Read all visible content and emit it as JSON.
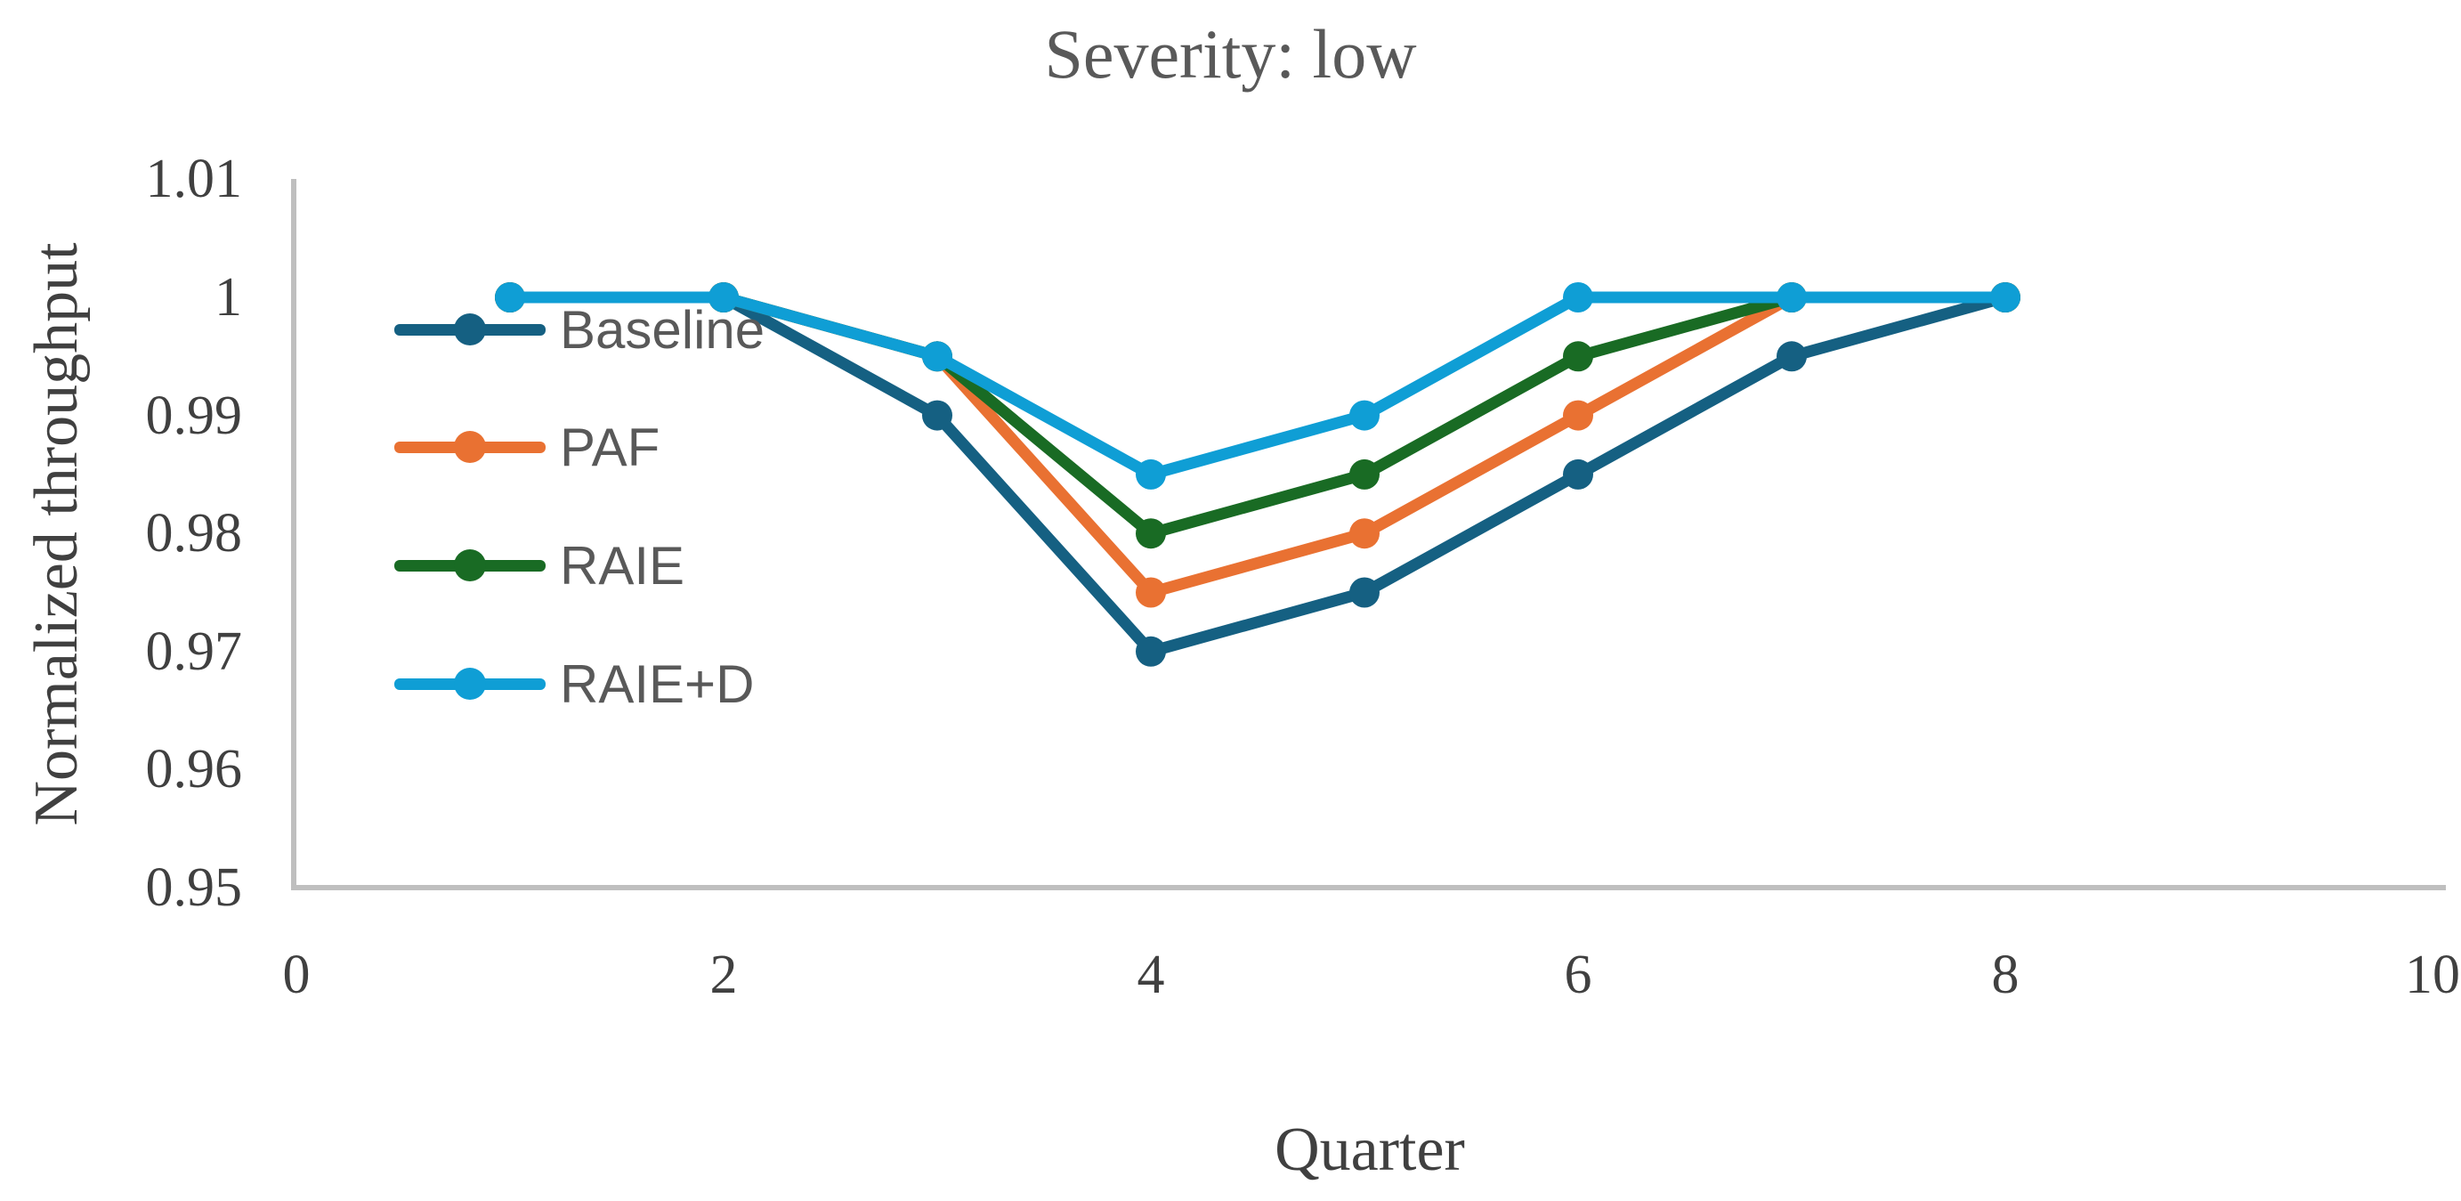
{
  "title": "Severity: low",
  "axes": {
    "y_title": "Normalized throughput",
    "x_title": "Quarter",
    "y_ticks": [
      "1.01",
      "1",
      "0.99",
      "0.98",
      "0.97",
      "0.96",
      "0.95"
    ],
    "x_ticks": [
      "0",
      "2",
      "4",
      "6",
      "8",
      "10"
    ]
  },
  "colors": {
    "axis_line": "#BFBFBF",
    "tick_text": "#404040",
    "title_text": "#595959",
    "legend_text": "#595959",
    "background": "#FFFFFF"
  },
  "legend": {
    "items": [
      {
        "label": "Baseline",
        "color": "#156082"
      },
      {
        "label": "PAF",
        "color": "#E97132"
      },
      {
        "label": "RAIE",
        "color": "#196B24"
      },
      {
        "label": "RAIE+D",
        "color": "#0F9ED5"
      }
    ]
  },
  "chart_data": {
    "type": "line",
    "title": "Severity: low",
    "xlabel": "Quarter",
    "ylabel": "Normalized throughput",
    "x": [
      1,
      2,
      3,
      4,
      5,
      6,
      7,
      8
    ],
    "series": [
      {
        "name": "Baseline",
        "color": "#156082",
        "values": [
          1,
          1,
          0.99,
          0.97,
          0.975,
          0.985,
          0.995,
          1
        ]
      },
      {
        "name": "PAF",
        "color": "#E97132",
        "values": [
          1,
          1,
          0.995,
          0.975,
          0.98,
          0.99,
          1,
          1
        ]
      },
      {
        "name": "RAIE",
        "color": "#196B24",
        "values": [
          1,
          1,
          0.995,
          0.98,
          0.985,
          0.995,
          1,
          1
        ]
      },
      {
        "name": "RAIE+D",
        "color": "#0F9ED5",
        "values": [
          1,
          1,
          0.995,
          0.985,
          0.99,
          1,
          1,
          1
        ]
      }
    ],
    "xlim": [
      0,
      10
    ],
    "ylim": [
      0.95,
      1.01
    ],
    "x_tick_step": 2,
    "y_tick_step": 0.01,
    "grid": false,
    "markers": "circle",
    "legend_position": "inside-upper-left"
  }
}
